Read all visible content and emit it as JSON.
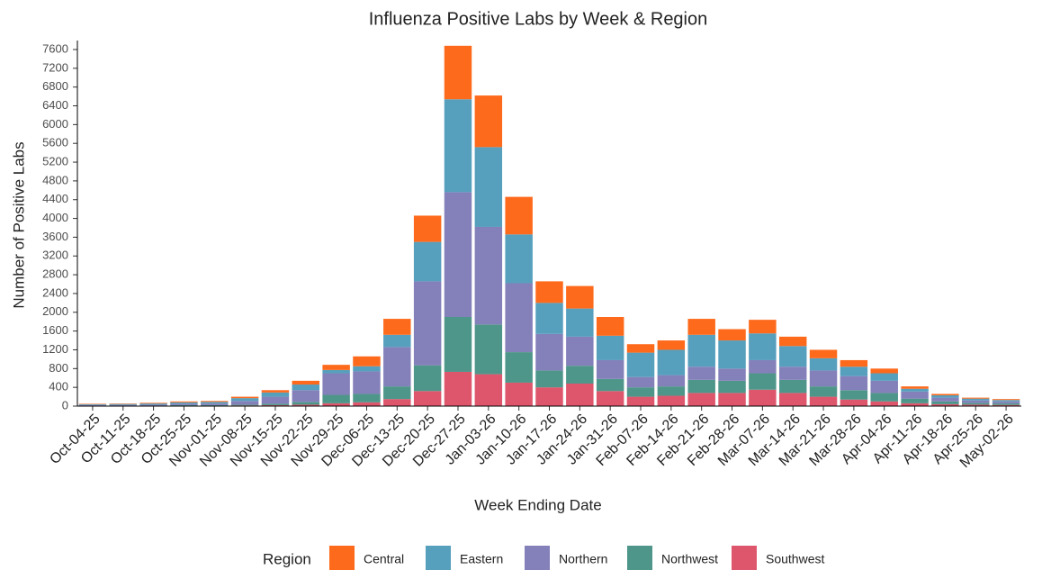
{
  "chart_data": {
    "type": "stacked_bar",
    "title": "Influenza Positive Labs by Week & Region",
    "x_label": "Week Ending Date",
    "y_label": "Number of Positive Labs",
    "legend_title": "Region",
    "categories": [
      "Oct-04-25",
      "Oct-11-25",
      "Oct-18-25",
      "Oct-25-25",
      "Nov-01-25",
      "Nov-08-25",
      "Nov-15-25",
      "Nov-22-25",
      "Nov-29-25",
      "Dec-06-25",
      "Dec-13-25",
      "Dec-20-25",
      "Dec-27-25",
      "Jan-03-26",
      "Jan-10-26",
      "Jan-17-26",
      "Jan-24-26",
      "Jan-31-26",
      "Feb-07-26",
      "Feb-14-26",
      "Feb-21-26",
      "Feb-28-26",
      "Mar-07-26",
      "Mar-14-26",
      "Mar-21-26",
      "Mar-28-26",
      "Apr-04-26",
      "Apr-11-26",
      "Apr-18-26",
      "Apr-25-26",
      "May-02-26"
    ],
    "series": [
      {
        "name": "Central",
        "color": "#fe6a1c",
        "values": [
          10,
          10,
          15,
          20,
          20,
          30,
          50,
          80,
          110,
          210,
          340,
          560,
          1140,
          1100,
          800,
          460,
          480,
          400,
          180,
          200,
          340,
          240,
          290,
          200,
          180,
          140,
          100,
          50,
          30,
          20,
          20
        ]
      },
      {
        "name": "Eastern",
        "color": "#569fbd",
        "values": [
          15,
          20,
          25,
          30,
          35,
          60,
          90,
          120,
          70,
          110,
          260,
          840,
          1980,
          1700,
          1040,
          660,
          600,
          520,
          520,
          540,
          680,
          600,
          570,
          440,
          260,
          200,
          160,
          60,
          50,
          40,
          30
        ]
      },
      {
        "name": "Northern",
        "color": "#8480ba",
        "values": [
          15,
          15,
          20,
          30,
          35,
          80,
          150,
          250,
          460,
          480,
          840,
          1790,
          2660,
          2080,
          1470,
          780,
          620,
          400,
          220,
          240,
          280,
          260,
          280,
          280,
          340,
          300,
          260,
          150,
          80,
          50,
          40
        ]
      },
      {
        "name": "Northwest",
        "color": "#4f968a",
        "values": [
          5,
          5,
          5,
          10,
          10,
          15,
          30,
          60,
          180,
          180,
          270,
          550,
          1170,
          1060,
          650,
          360,
          380,
          260,
          200,
          200,
          280,
          260,
          350,
          280,
          220,
          200,
          180,
          100,
          60,
          40,
          35
        ]
      },
      {
        "name": "Southwest",
        "color": "#de566c",
        "values": [
          5,
          5,
          5,
          10,
          10,
          15,
          20,
          30,
          60,
          80,
          150,
          320,
          730,
          680,
          500,
          400,
          480,
          320,
          200,
          220,
          280,
          280,
          350,
          280,
          200,
          140,
          100,
          60,
          40,
          30,
          25
        ]
      }
    ],
    "ylim": [
      0,
      7800
    ],
    "yticks": [
      0,
      400,
      800,
      1200,
      1600,
      2000,
      2400,
      2800,
      3200,
      3600,
      4000,
      4400,
      4800,
      5200,
      5600,
      6000,
      6400,
      6800,
      7200,
      7600
    ],
    "legend_position": "bottom"
  }
}
